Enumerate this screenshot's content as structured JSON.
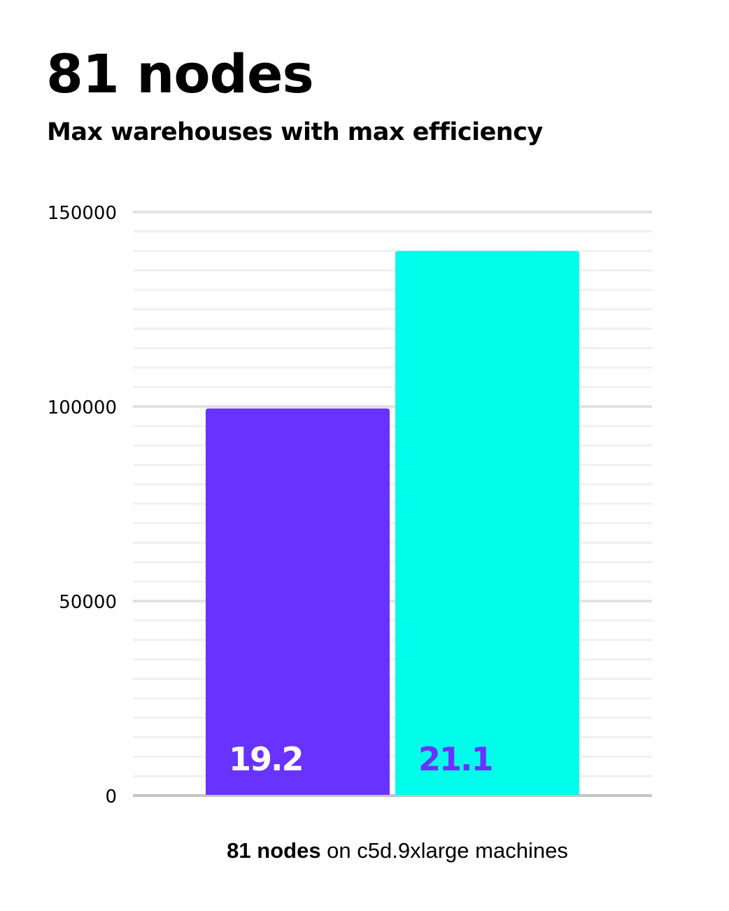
{
  "chart_data": {
    "type": "bar",
    "title": "81 nodes",
    "subtitle": "Max warehouses with max efficiency",
    "categories": [
      "",
      ""
    ],
    "values": [
      99500,
      140000
    ],
    "bar_labels": [
      "19.2",
      "21.1"
    ],
    "colors": [
      "#6933ff",
      "#00fdeb"
    ],
    "label_colors": [
      "#ffffff",
      "#6933ff"
    ],
    "ylim": [
      0,
      150000
    ],
    "yticks": [
      0,
      50000,
      100000,
      150000
    ],
    "ytick_labels": [
      "0",
      "50000",
      "100000",
      "150000"
    ],
    "minor_grid_step": 5000,
    "grid": true,
    "xlabel_bold": "81 nodes",
    "xlabel_rest": " on c5d.9xlarge machines"
  }
}
